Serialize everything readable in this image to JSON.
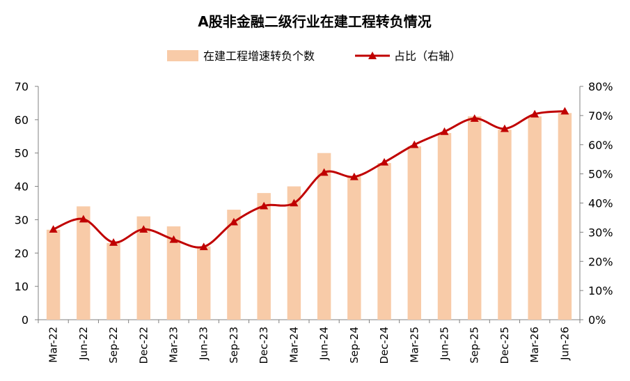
{
  "chart_data": {
    "type": "bar+line",
    "title": "A股非金融二级行业在建工程转负情况",
    "categories": [
      "Mar-22",
      "Jun-22",
      "Sep-22",
      "Dec-22",
      "Mar-23",
      "Jun-23",
      "Sep-23",
      "Dec-23",
      "Mar-24",
      "Jun-24",
      "Sep-24",
      "Dec-24",
      "Mar-25",
      "Jun-25",
      "Sep-25",
      "Dec-25",
      "Mar-26",
      "Jun-26"
    ],
    "series": [
      {
        "name": "在建工程增速转负个数",
        "type": "bar",
        "axis": "left",
        "color": "#F8CBA8",
        "values": [
          27,
          34,
          23,
          31,
          28,
          22,
          33,
          38,
          40,
          50,
          43,
          47,
          52,
          56,
          61,
          57,
          61,
          62
        ]
      },
      {
        "name": "占比（右轴）",
        "type": "line",
        "axis": "right",
        "color": "#C00000",
        "marker": "triangle",
        "values": [
          0.31,
          0.345,
          0.265,
          0.31,
          0.275,
          0.25,
          0.335,
          0.39,
          0.4,
          0.505,
          0.49,
          0.54,
          0.6,
          0.645,
          0.69,
          0.655,
          0.705,
          0.715
        ]
      }
    ],
    "y_left": {
      "min": 0,
      "max": 70,
      "step": 10,
      "ticks": [
        "0",
        "10",
        "20",
        "30",
        "40",
        "50",
        "60",
        "70"
      ]
    },
    "y_right": {
      "min": 0,
      "max": 0.8,
      "step": 0.1,
      "ticks": [
        "0%",
        "10%",
        "20%",
        "30%",
        "40%",
        "50%",
        "60%",
        "70%",
        "80%"
      ]
    },
    "legend": {
      "placement": "top-center"
    },
    "grid": false
  }
}
